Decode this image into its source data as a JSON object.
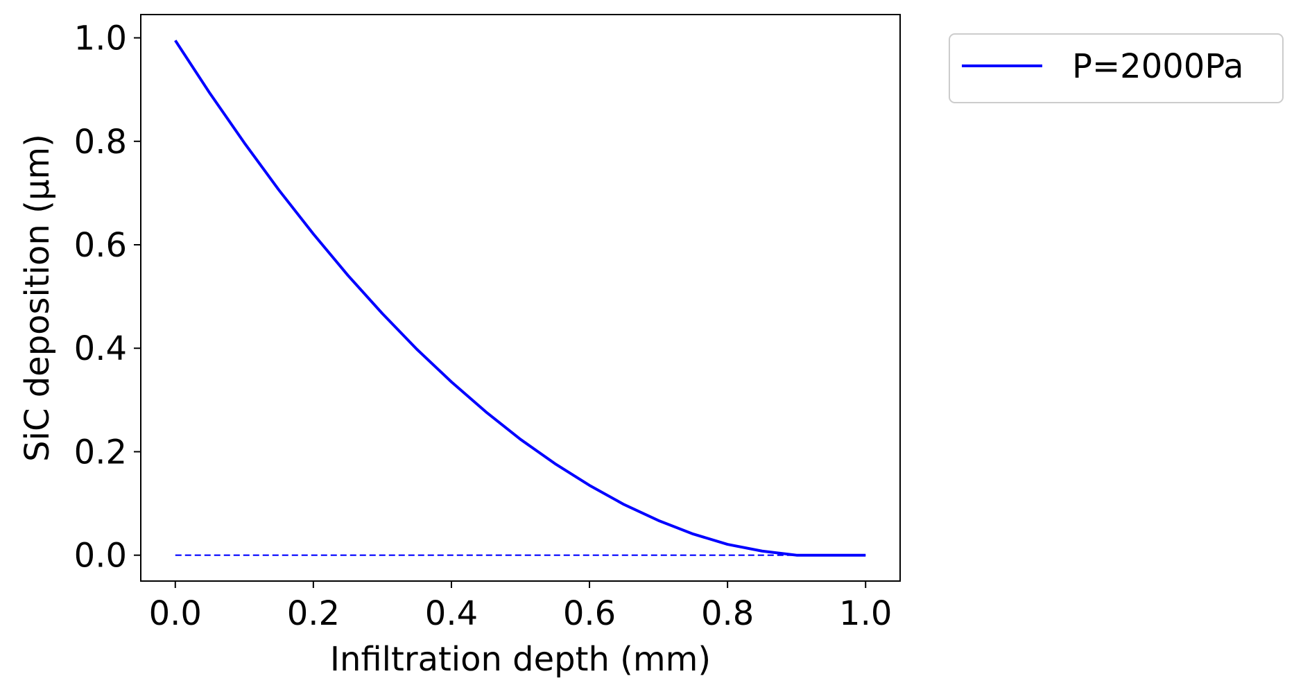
{
  "chart_data": {
    "type": "line",
    "xlabel": "Infiltration depth (mm)",
    "ylabel": "SiC deposition (μm)",
    "xlim": [
      -0.05,
      1.05
    ],
    "ylim": [
      -0.05,
      1.045
    ],
    "xticks": [
      0.0,
      0.2,
      0.4,
      0.6,
      0.8,
      1.0
    ],
    "xtick_labels": [
      "0.0",
      "0.2",
      "0.4",
      "0.6",
      "0.8",
      "1.0"
    ],
    "yticks": [
      0.0,
      0.2,
      0.4,
      0.6,
      0.8,
      1.0
    ],
    "ytick_labels": [
      "0.0",
      "0.2",
      "0.4",
      "0.6",
      "0.8",
      "1.0"
    ],
    "grid": false,
    "legend_position": "outside-top-right",
    "series": [
      {
        "name": "P=2000Pa",
        "color": "#0000ff",
        "style": "solid",
        "x": [
          0.0,
          0.05,
          0.1,
          0.15,
          0.2,
          0.25,
          0.3,
          0.35,
          0.4,
          0.45,
          0.5,
          0.55,
          0.6,
          0.65,
          0.7,
          0.75,
          0.8,
          0.85,
          0.9,
          0.95,
          1.0
        ],
        "y": [
          0.995,
          0.893,
          0.797,
          0.706,
          0.621,
          0.541,
          0.467,
          0.398,
          0.335,
          0.277,
          0.224,
          0.177,
          0.135,
          0.098,
          0.067,
          0.041,
          0.021,
          0.008,
          0.0,
          0.0,
          0.0
        ]
      },
      {
        "color": "#0000ff",
        "style": "dashed",
        "x": [
          0.0,
          1.0
        ],
        "y": [
          0.0,
          0.0
        ]
      }
    ]
  }
}
